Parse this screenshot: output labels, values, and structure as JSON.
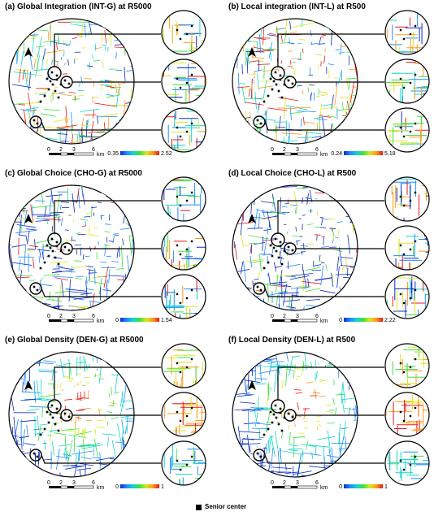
{
  "panels": [
    {
      "title": "(a) Global Integration (INT-G) at R5000",
      "scale_min": "0.35",
      "scale_max": "2.52",
      "palette": "int",
      "density": false
    },
    {
      "title": "(b) Local integration (INT-L) at R500",
      "scale_min": "0.24",
      "scale_max": "5.18",
      "palette": "int",
      "density": false
    },
    {
      "title": "(c) Global Choice (CHO-G) at R5000",
      "scale_min": "0",
      "scale_max": "1.54",
      "palette": "cho",
      "density": false
    },
    {
      "title": "(d) Local Choice (CHO-L) at R500",
      "scale_min": "0",
      "scale_max": "2.22",
      "palette": "cho",
      "density": false
    },
    {
      "title": "(e) Global Density (DEN-G) at R5000",
      "scale_min": "0",
      "scale_max": "1",
      "palette": "den",
      "density": true
    },
    {
      "title": "(f) Local Density (DEN-L) at R500",
      "scale_min": "0",
      "scale_max": "1",
      "palette": "den",
      "density": true
    }
  ],
  "scale_bar": {
    "ticks": [
      "0",
      "2",
      "3",
      "6"
    ],
    "unit": "km"
  },
  "legend": {
    "label": "Senior center"
  },
  "colors": {
    "ramp": [
      "#0a2cc8",
      "#1f8cff",
      "#11d6c8",
      "#3ee03e",
      "#d8e820",
      "#ff9a1a",
      "#e81818"
    ]
  }
}
